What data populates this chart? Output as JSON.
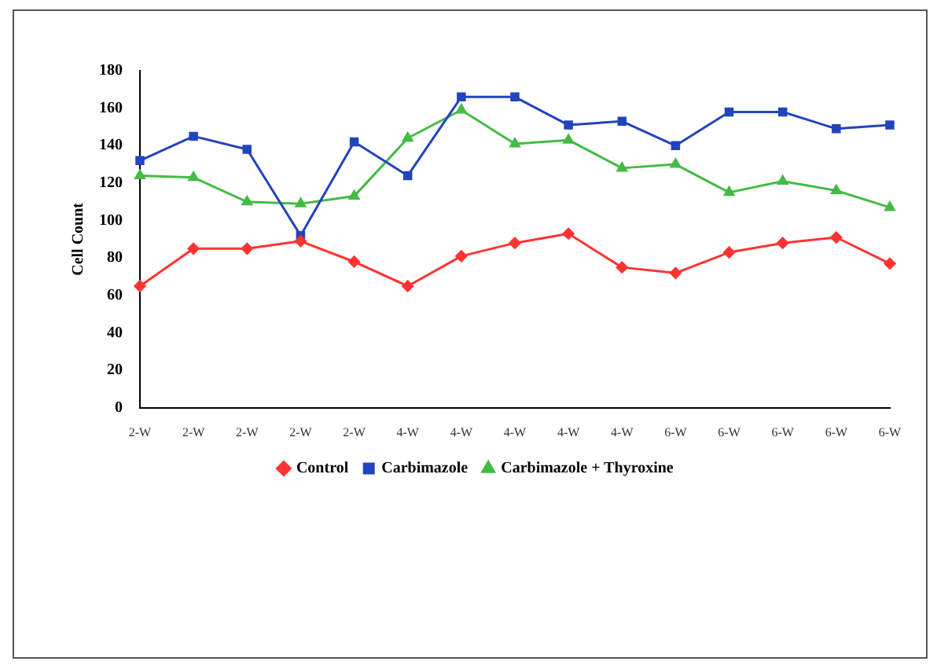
{
  "chart_data": {
    "type": "line",
    "ylabel": "Cell Count",
    "categories": [
      "2-W",
      "2-W",
      "2-W",
      "2-W",
      "2-W",
      "4-W",
      "4-W",
      "4-W",
      "4-W",
      "4-W",
      "6-W",
      "6-W",
      "6-W",
      "6-W",
      "6-W"
    ],
    "series": [
      {
        "name": "Control",
        "color": "#ff3333",
        "marker": "diamond",
        "values": [
          65,
          85,
          85,
          89,
          78,
          65,
          81,
          88,
          93,
          75,
          72,
          83,
          88,
          91,
          77
        ]
      },
      {
        "name": "Carbimazole",
        "color": "#2244bb",
        "marker": "square",
        "values": [
          132,
          145,
          138,
          92,
          142,
          124,
          166,
          166,
          151,
          153,
          140,
          158,
          158,
          149,
          151
        ]
      },
      {
        "name": "Carbimazole + Thyroxine",
        "color": "#44bb44",
        "marker": "triangle",
        "values": [
          124,
          123,
          110,
          109,
          113,
          144,
          159,
          141,
          143,
          128,
          130,
          115,
          121,
          116,
          107
        ]
      }
    ],
    "ylim": [
      0,
      180
    ],
    "yticks": [
      0,
      20,
      40,
      60,
      80,
      100,
      120,
      140,
      160,
      180
    ],
    "grid": false,
    "legend": "bottom"
  }
}
